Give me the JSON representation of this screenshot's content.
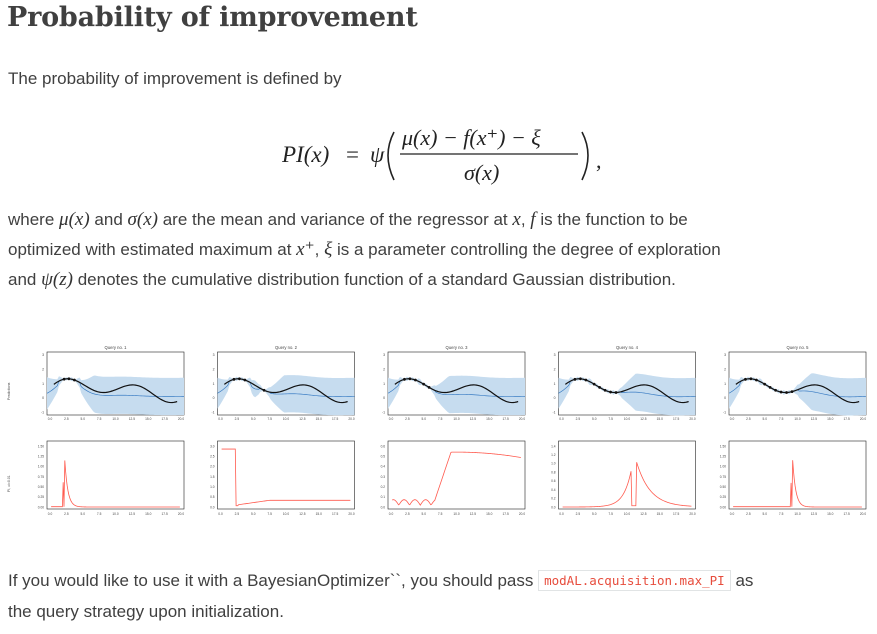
{
  "section": {
    "title": "Probability of improvement",
    "intro": "The probability of improvement is defined by"
  },
  "formula": {
    "lhs": "PI(x)",
    "equals": "=",
    "psi": "ψ",
    "numerator": "μ(x) − f(x⁺) − ξ",
    "denominator": "σ(x)",
    "trailing": ","
  },
  "description": {
    "s1": "where",
    "mu": "μ(x)",
    "s2": "and",
    "sigma": "σ(x)",
    "s3": "are the mean and variance of the regressor at",
    "x": "x",
    "s4": ",",
    "f": "f",
    "s5": "is the function to be",
    "line2a": "optimized with estimated maximum at",
    "xplus": "x⁺",
    "s6": ",",
    "xi": "ξ",
    "s7": "is a parameter controlling the degree of exploration",
    "line3a": "and",
    "psiz": "ψ(z)",
    "s8": "denotes the cumulative distribution function of a standard Gaussian distribution."
  },
  "usage": {
    "before": "If you would like to use it with a BayesianOptimizer``, you should pass",
    "code": "modAL.acquisition.max_PI",
    "after": "as",
    "line2": "the query strategy upon initialization."
  },
  "colors": {
    "text": "#404040",
    "code_red": "#e74c3c",
    "band_blue": "#c6dcef",
    "mean_blue": "#3b7dc4",
    "pi_red": "#ff5a4e"
  },
  "figure": {
    "top_ylabel": "Predictions",
    "bottom_ylabel": "PI, xi=0.01",
    "x_ticks": [
      "0.0",
      "2.5",
      "5.0",
      "7.5",
      "10.0",
      "12.5",
      "15.0",
      "17.5",
      "20.0"
    ],
    "top_y_ticks": [
      "-1",
      "0",
      "1",
      "2",
      "3"
    ],
    "panels": [
      {
        "title": "Query no. 1",
        "pi_ticks": [
          "0.00",
          "0.25",
          "0.50",
          "0.75",
          "1.00",
          "1.25",
          "1.50"
        ],
        "pi_type": "spike",
        "pi_peak": 0.125,
        "obs": [
          0.125,
          0.16,
          0.2
        ]
      },
      {
        "title": "Query no. 2",
        "pi_ticks": [
          "0.0",
          "0.5",
          "1.0",
          "1.5",
          "2.0",
          "2.5",
          "3.0"
        ],
        "pi_type": "drop",
        "pi_peak": 0.13,
        "obs": [
          0.12,
          0.16,
          0.2,
          0.34
        ]
      },
      {
        "title": "Query no. 3",
        "pi_ticks": [
          "0.0",
          "0.1",
          "0.2",
          "0.3",
          "0.4",
          "0.5",
          "0.6"
        ],
        "pi_type": "rise",
        "pi_peak": 0.45,
        "obs": [
          0.12,
          0.16,
          0.2,
          0.26,
          0.3
        ]
      },
      {
        "title": "Query no. 4",
        "pi_ticks": [
          "0.0",
          "0.2",
          "0.4",
          "0.6",
          "0.8",
          "1.0",
          "1.2",
          "1.4"
        ],
        "pi_type": "twin",
        "pi_peak": 0.55,
        "obs": [
          0.12,
          0.16,
          0.2,
          0.26,
          0.3,
          0.34,
          0.38,
          0.42
        ]
      },
      {
        "title": "Query no. 5",
        "pi_ticks": [
          "0.00",
          "0.25",
          "0.50",
          "0.75",
          "1.00",
          "1.25",
          "1.50"
        ],
        "pi_type": "spike",
        "pi_peak": 0.46,
        "obs": [
          0.12,
          0.16,
          0.2,
          0.26,
          0.3,
          0.34,
          0.38,
          0.42,
          0.46
        ]
      }
    ]
  }
}
